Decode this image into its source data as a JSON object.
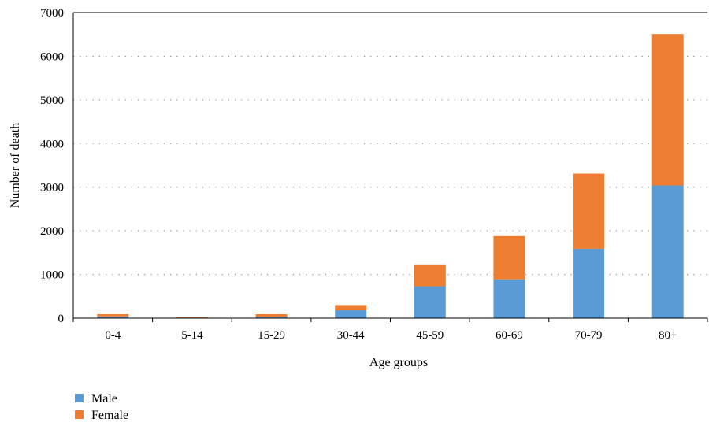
{
  "chart_data": {
    "type": "bar",
    "stacked": true,
    "categories": [
      "0-4",
      "5-14",
      "15-29",
      "30-44",
      "45-59",
      "60-69",
      "70-79",
      "80+"
    ],
    "series": [
      {
        "name": "Male",
        "color": "#5b9bd5",
        "values": [
          40,
          5,
          30,
          180,
          730,
          890,
          1590,
          3040
        ]
      },
      {
        "name": "Female",
        "color": "#ed7d31",
        "values": [
          50,
          15,
          60,
          120,
          500,
          990,
          1720,
          3470
        ]
      }
    ],
    "title": "",
    "xlabel": "Age groups",
    "ylabel": "Number of death",
    "ylim": [
      0,
      7000
    ],
    "yticks": [
      0,
      1000,
      2000,
      3000,
      4000,
      5000,
      6000,
      7000
    ],
    "grid": "horizontal dotted",
    "legend_position": "bottom-left"
  }
}
